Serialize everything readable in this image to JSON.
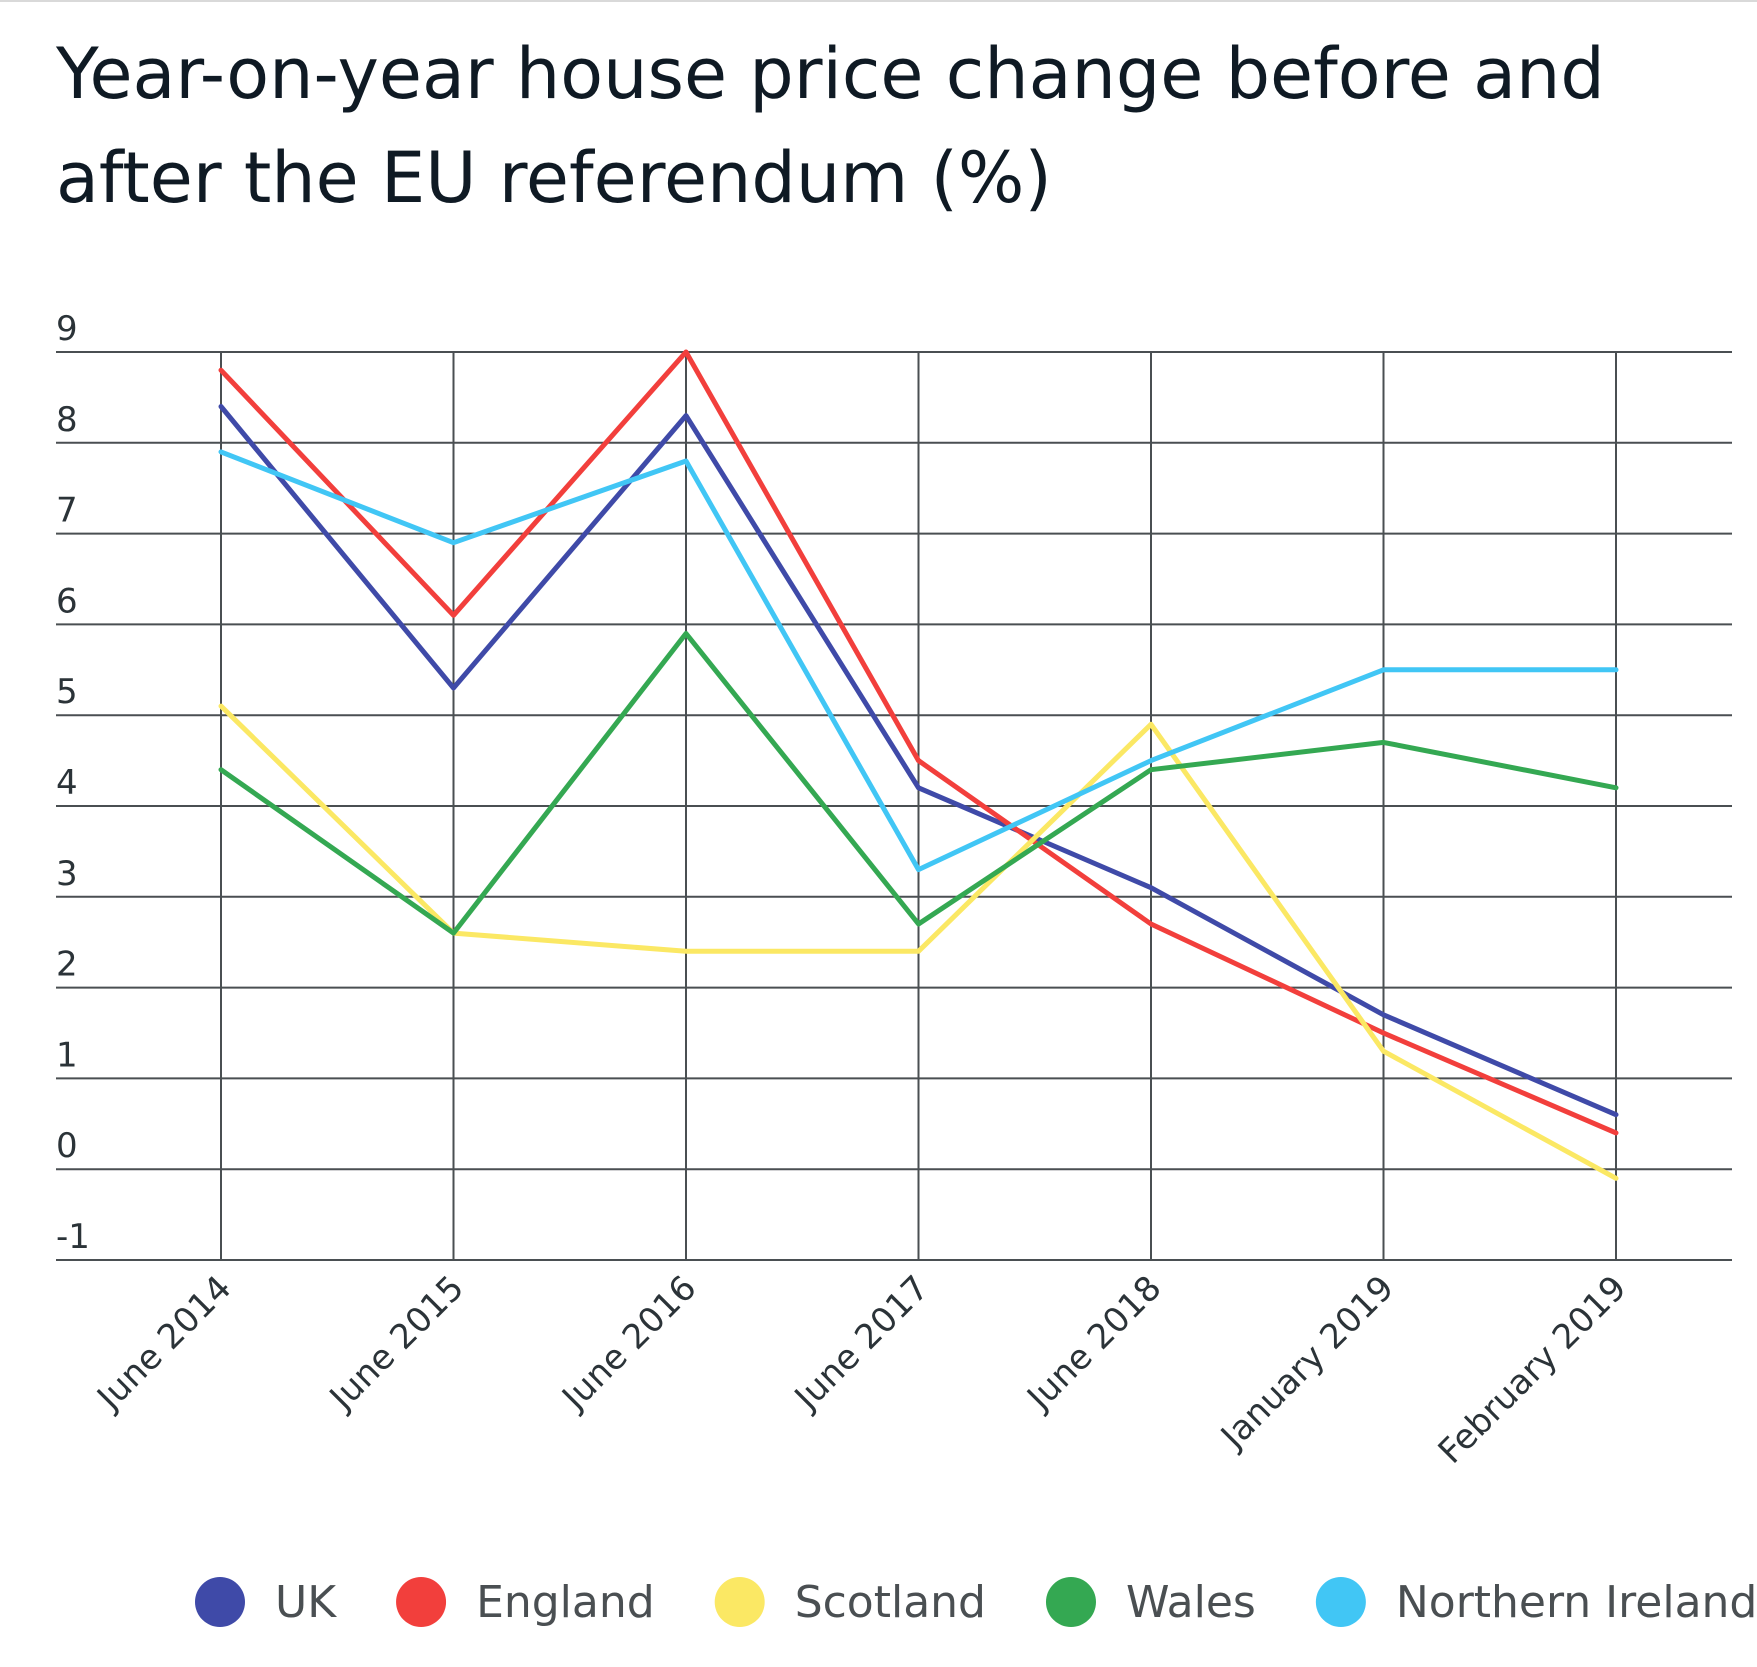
{
  "title": {
    "line1": "Year-on-year house price change before and",
    "line2": "after the EU referendum (%)"
  },
  "chart_data": {
    "type": "line",
    "title": "Year-on-year house price change before and after the EU referendum (%)",
    "categories": [
      "June 2014",
      "June 2015",
      "June 2016",
      "June 2017",
      "June 2018",
      "January 2019",
      "February 2019"
    ],
    "y_ticks": [
      9,
      8,
      7,
      6,
      5,
      4,
      3,
      2,
      1,
      0,
      -1
    ],
    "ylim": [
      -1,
      9
    ],
    "grid": true,
    "legend_position": "bottom",
    "series": [
      {
        "name": "UK",
        "color": "#3f4aa8",
        "values": [
          8.4,
          5.3,
          8.3,
          4.2,
          3.1,
          1.7,
          0.6
        ]
      },
      {
        "name": "England",
        "color": "#f23f3c",
        "values": [
          8.8,
          6.1,
          9.0,
          4.5,
          2.7,
          1.5,
          0.4
        ]
      },
      {
        "name": "Scotland",
        "color": "#fbe864",
        "values": [
          5.1,
          2.6,
          2.4,
          2.4,
          4.9,
          1.3,
          -0.1
        ]
      },
      {
        "name": "Wales",
        "color": "#34a852",
        "values": [
          4.4,
          2.6,
          5.9,
          2.7,
          4.4,
          4.7,
          4.2
        ]
      },
      {
        "name": "Northern Ireland",
        "color": "#41c6f5",
        "values": [
          7.9,
          6.9,
          7.8,
          3.3,
          4.5,
          5.5,
          5.5
        ]
      }
    ]
  }
}
